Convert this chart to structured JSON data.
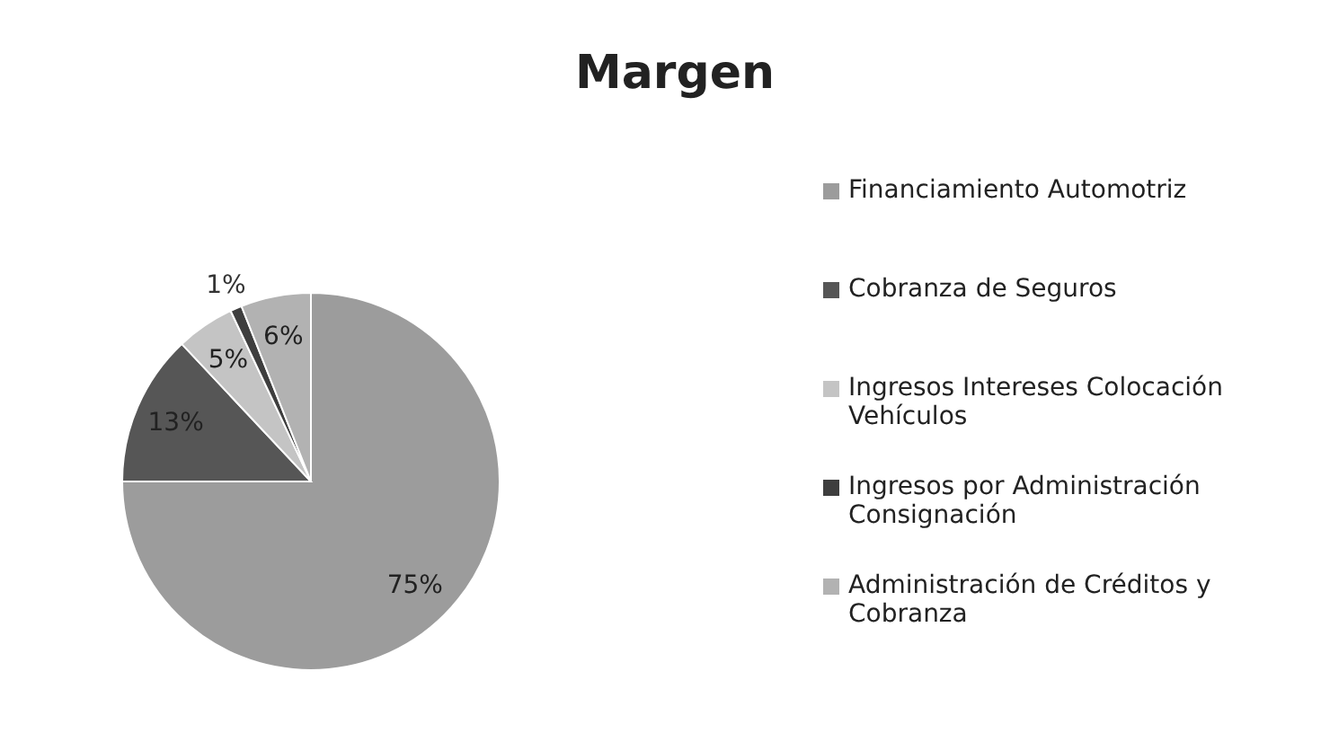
{
  "chart_data": {
    "type": "pie",
    "title": "Margen",
    "categories": [
      "Financiamiento Automotriz",
      "Cobranza de Seguros",
      "Ingresos Intereses Colocación Vehículos",
      "Ingresos por Administración Consignación",
      "Administración de Créditos y Cobranza"
    ],
    "values": [
      75,
      13,
      5,
      1,
      6
    ],
    "value_labels": [
      "75%",
      "13%",
      "5%",
      "1%",
      "6%"
    ],
    "colors": [
      "#9c9c9c",
      "#565656",
      "#c4c4c4",
      "#3e3e3e",
      "#b2b2b2"
    ],
    "legend": "right"
  }
}
